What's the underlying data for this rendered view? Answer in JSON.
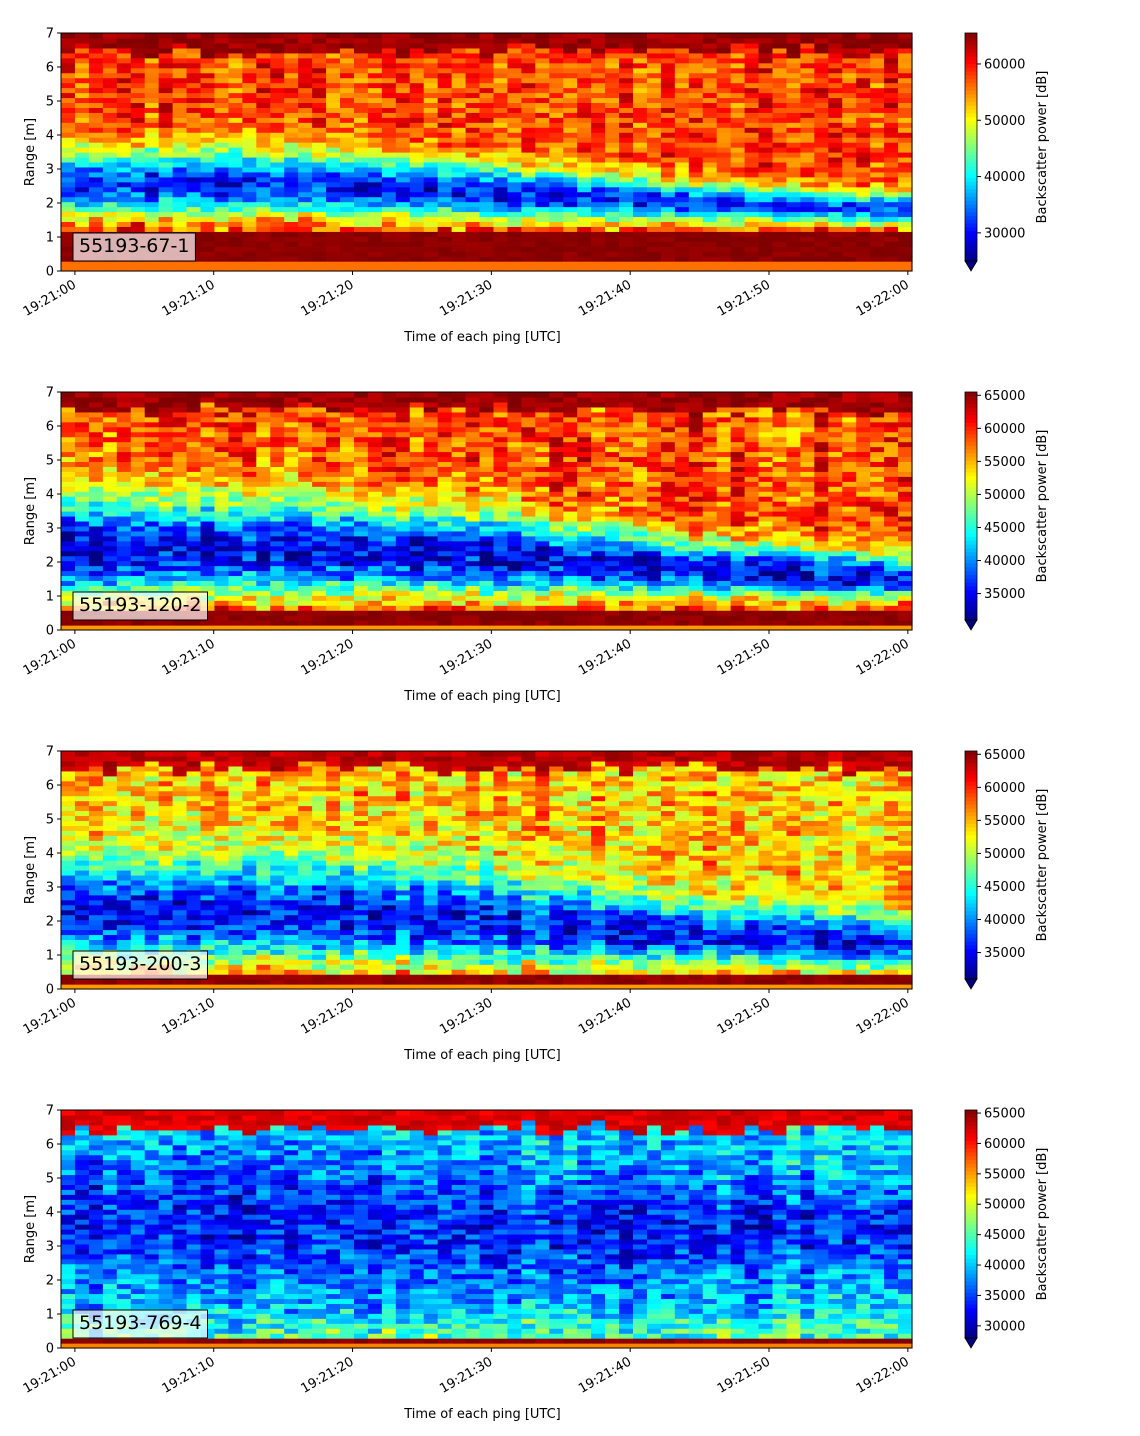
{
  "chart_data": [
    {
      "type": "heatmap",
      "annotation": "55193-67-1",
      "xlabel": "Time of each ping [UTC]",
      "ylabel": "Range [m]",
      "colorbar_label": "Backscatter power [dB]",
      "colormap": "jet",
      "x_ticks": [
        "19:21:00",
        "19:21:10",
        "19:21:20",
        "19:21:30",
        "19:21:40",
        "19:21:50",
        "19:22:00"
      ],
      "y_ticks": [
        0,
        1,
        2,
        3,
        4,
        5,
        6,
        7
      ],
      "ylim": [
        0,
        7
      ],
      "xlim_seconds": [
        -1,
        60.3
      ],
      "clim": [
        25000,
        65500
      ],
      "colorbar_ticks": [
        30000,
        40000,
        50000,
        60000
      ],
      "colorbar_extend_min": true,
      "profile": {
        "near_band_top_m": 1.15,
        "near_band_value": 65000,
        "bottom_strip_m": 0.25,
        "low_zone_center_m": [
          2.6,
          2.6,
          2.3,
          2.0,
          1.8
        ],
        "low_zone_halfwidth_m": [
          1.2,
          1.2,
          1.0,
          0.7,
          0.55
        ],
        "low_value": 31000,
        "high_value": 58000,
        "surface_value": 64500,
        "surface_top_m": 6.5
      }
    },
    {
      "type": "heatmap",
      "annotation": "55193-120-2",
      "xlabel": "Time of each ping [UTC]",
      "ylabel": "Range [m]",
      "colorbar_label": "Backscatter power [dB]",
      "colormap": "jet",
      "x_ticks": [
        "19:21:00",
        "19:21:10",
        "19:21:20",
        "19:21:30",
        "19:21:40",
        "19:21:50",
        "19:22:00"
      ],
      "y_ticks": [
        0,
        1,
        2,
        3,
        4,
        5,
        6,
        7
      ],
      "ylim": [
        0,
        7
      ],
      "xlim_seconds": [
        -1,
        60.3
      ],
      "clim": [
        31000,
        65500
      ],
      "colorbar_ticks": [
        35000,
        40000,
        45000,
        50000,
        55000,
        60000,
        65000
      ],
      "colorbar_extend_min": true,
      "profile": {
        "near_band_top_m": 0.6,
        "near_band_value": 65000,
        "bottom_strip_m": 0.15,
        "low_zone_center_m": [
          2.4,
          2.4,
          2.2,
          1.8,
          1.5
        ],
        "low_zone_halfwidth_m": [
          1.8,
          1.8,
          1.5,
          1.0,
          0.8
        ],
        "low_value": 34500,
        "high_value": 58500,
        "surface_value": 64500,
        "surface_top_m": 6.5
      }
    },
    {
      "type": "heatmap",
      "annotation": "55193-200-3",
      "xlabel": "Time of each ping [UTC]",
      "ylabel": "Range [m]",
      "colorbar_label": "Backscatter power [dB]",
      "colormap": "jet",
      "x_ticks": [
        "19:21:00",
        "19:21:10",
        "19:21:20",
        "19:21:30",
        "19:21:40",
        "19:21:50",
        "19:22:00"
      ],
      "y_ticks": [
        0,
        1,
        2,
        3,
        4,
        5,
        6,
        7
      ],
      "ylim": [
        0,
        7
      ],
      "xlim_seconds": [
        -1,
        60.3
      ],
      "clim": [
        31000,
        65500
      ],
      "colorbar_ticks": [
        35000,
        40000,
        45000,
        50000,
        55000,
        60000,
        65000
      ],
      "colorbar_extend_min": true,
      "profile": {
        "near_band_top_m": 0.45,
        "near_band_value": 65000,
        "bottom_strip_m": 0.12,
        "low_zone_center_m": [
          2.3,
          2.3,
          2.0,
          1.6,
          1.3
        ],
        "low_zone_halfwidth_m": [
          1.8,
          1.8,
          1.6,
          1.1,
          0.9
        ],
        "low_value": 35500,
        "high_value": 54500,
        "surface_value": 63500,
        "surface_top_m": 6.5
      }
    },
    {
      "type": "heatmap",
      "annotation": "55193-769-4",
      "xlabel": "Time of each ping [UTC]",
      "ylabel": "Range [m]",
      "colorbar_label": "Backscatter power [dB]",
      "colormap": "jet",
      "x_ticks": [
        "19:21:00",
        "19:21:10",
        "19:21:20",
        "19:21:30",
        "19:21:40",
        "19:21:50",
        "19:22:00"
      ],
      "y_ticks": [
        0,
        1,
        2,
        3,
        4,
        5,
        6,
        7
      ],
      "ylim": [
        0,
        7
      ],
      "xlim_seconds": [
        -1,
        60.3
      ],
      "clim": [
        28000,
        65500
      ],
      "colorbar_ticks": [
        30000,
        35000,
        40000,
        45000,
        50000,
        55000,
        60000,
        65000
      ],
      "colorbar_extend_min": true,
      "profile": {
        "near_band_top_m": 0.35,
        "near_band_value": 65000,
        "bottom_strip_m": 0.1,
        "low_zone_center_m": [
          3.8,
          3.8,
          3.5,
          3.5,
          3.5
        ],
        "low_zone_halfwidth_m": [
          2.6,
          2.6,
          2.4,
          1.8,
          1.6
        ],
        "low_value": 33500,
        "high_value": 41000,
        "surface_value": 62000,
        "surface_top_m": 6.45
      }
    }
  ]
}
